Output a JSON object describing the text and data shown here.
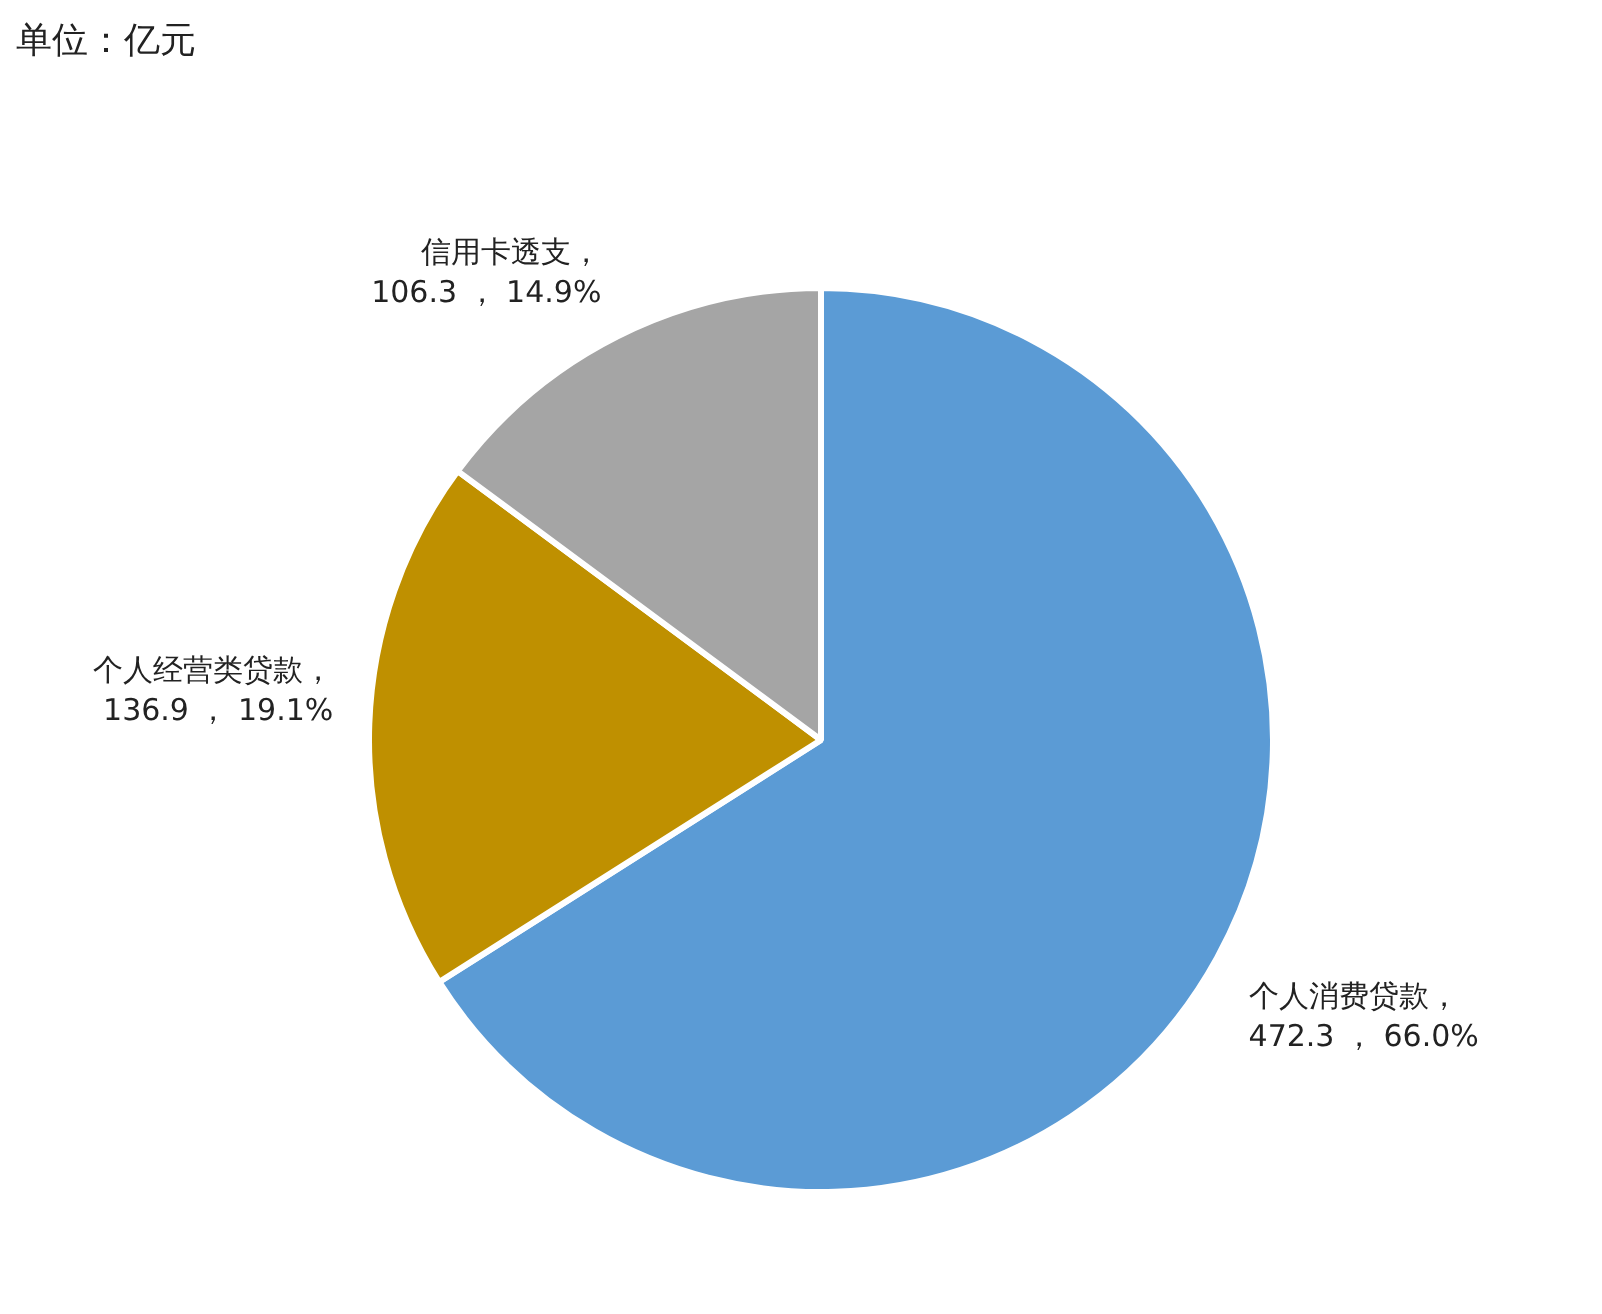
{
  "chart_data": {
    "type": "pie",
    "subtitle": "单位：亿元",
    "categories": [
      "个人消费贷款",
      "个人经营类贷款",
      "信用卡透支"
    ],
    "values": [
      472.3,
      136.9,
      106.3
    ],
    "colors": [
      "#5b9bd5",
      "#bf9000",
      "#a5a5a5"
    ],
    "value_labels": [
      "，\n472.3 ， 66.0%",
      "，\n136.9 ， 19.1%",
      "，\n106.3 ， 14.9%"
    ],
    "legend": false
  }
}
